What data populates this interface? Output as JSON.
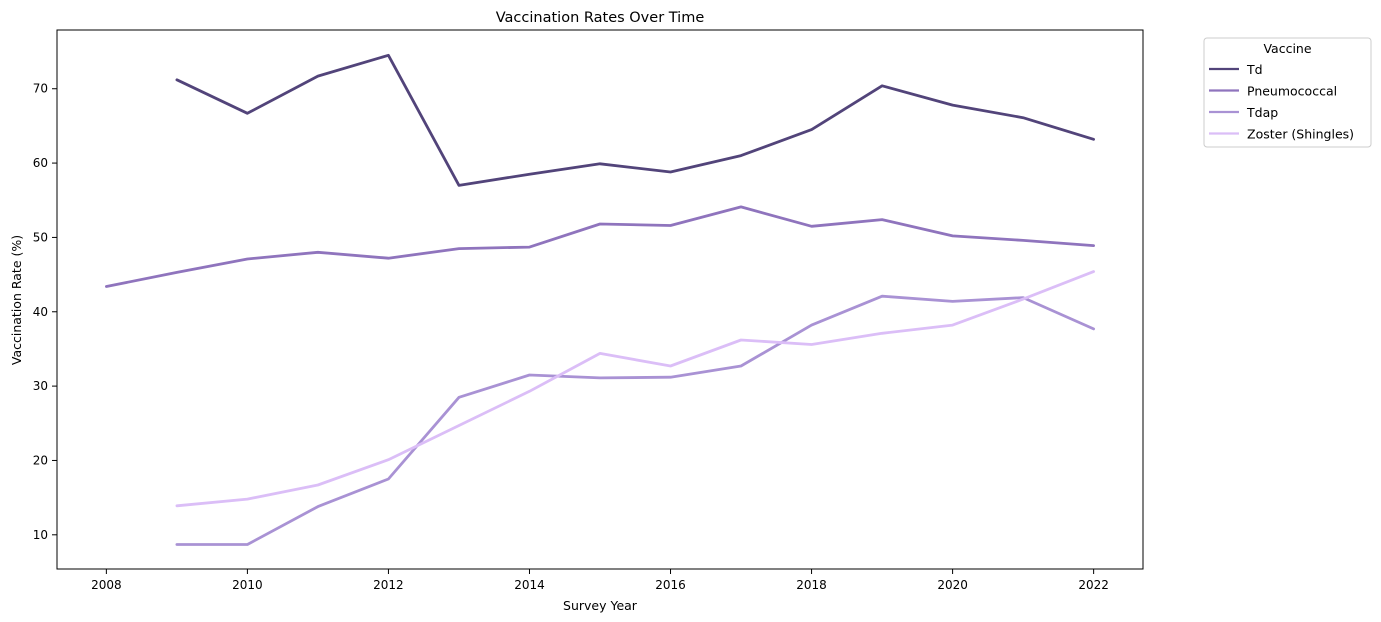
{
  "chart_data": {
    "type": "line",
    "title": "Vaccination Rates Over Time",
    "xlabel": "Survey Year",
    "ylabel": "Vaccination Rate (%)",
    "xlim": [
      2007.3,
      2022.7
    ],
    "ylim": [
      5.4,
      77.9
    ],
    "xticks": [
      2008,
      2010,
      2012,
      2014,
      2016,
      2018,
      2020,
      2022
    ],
    "yticks": [
      10,
      20,
      30,
      40,
      50,
      60,
      70
    ],
    "grid": false,
    "legend": {
      "title": "Vaccine",
      "placement": "outside-top-right"
    },
    "series": [
      {
        "name": "Td",
        "color": "#52447a",
        "x": [
          2009,
          2010,
          2011,
          2012,
          2013,
          2014,
          2015,
          2016,
          2017,
          2018,
          2019,
          2020,
          2021,
          2022
        ],
        "y": [
          71.2,
          66.7,
          71.7,
          74.5,
          57.0,
          58.5,
          59.9,
          58.8,
          61.0,
          64.5,
          70.4,
          67.8,
          66.1,
          63.2
        ]
      },
      {
        "name": "Pneumococcal",
        "color": "#8f74bd",
        "x": [
          2008,
          2009,
          2010,
          2011,
          2012,
          2013,
          2014,
          2015,
          2016,
          2017,
          2018,
          2019,
          2020,
          2021,
          2022
        ],
        "y": [
          43.4,
          45.3,
          47.1,
          48.0,
          47.2,
          48.5,
          48.7,
          51.8,
          51.6,
          54.1,
          51.5,
          52.4,
          50.2,
          49.6,
          48.9
        ]
      },
      {
        "name": "Tdap",
        "color": "#a992d4",
        "x": [
          2009,
          2010,
          2011,
          2012,
          2013,
          2014,
          2015,
          2016,
          2017,
          2018,
          2019,
          2020,
          2021,
          2022
        ],
        "y": [
          8.7,
          8.7,
          13.8,
          17.5,
          28.5,
          31.5,
          31.1,
          31.2,
          32.7,
          38.2,
          42.1,
          41.4,
          41.9,
          37.7
        ]
      },
      {
        "name": "Zoster (Shingles)",
        "color": "#dbbef7",
        "x": [
          2009,
          2010,
          2011,
          2012,
          2013,
          2014,
          2015,
          2016,
          2017,
          2018,
          2019,
          2020,
          2021,
          2022
        ],
        "y": [
          13.9,
          14.8,
          16.7,
          20.1,
          24.7,
          29.3,
          34.4,
          32.7,
          36.2,
          35.6,
          37.1,
          38.2,
          41.7,
          45.4
        ]
      }
    ]
  }
}
